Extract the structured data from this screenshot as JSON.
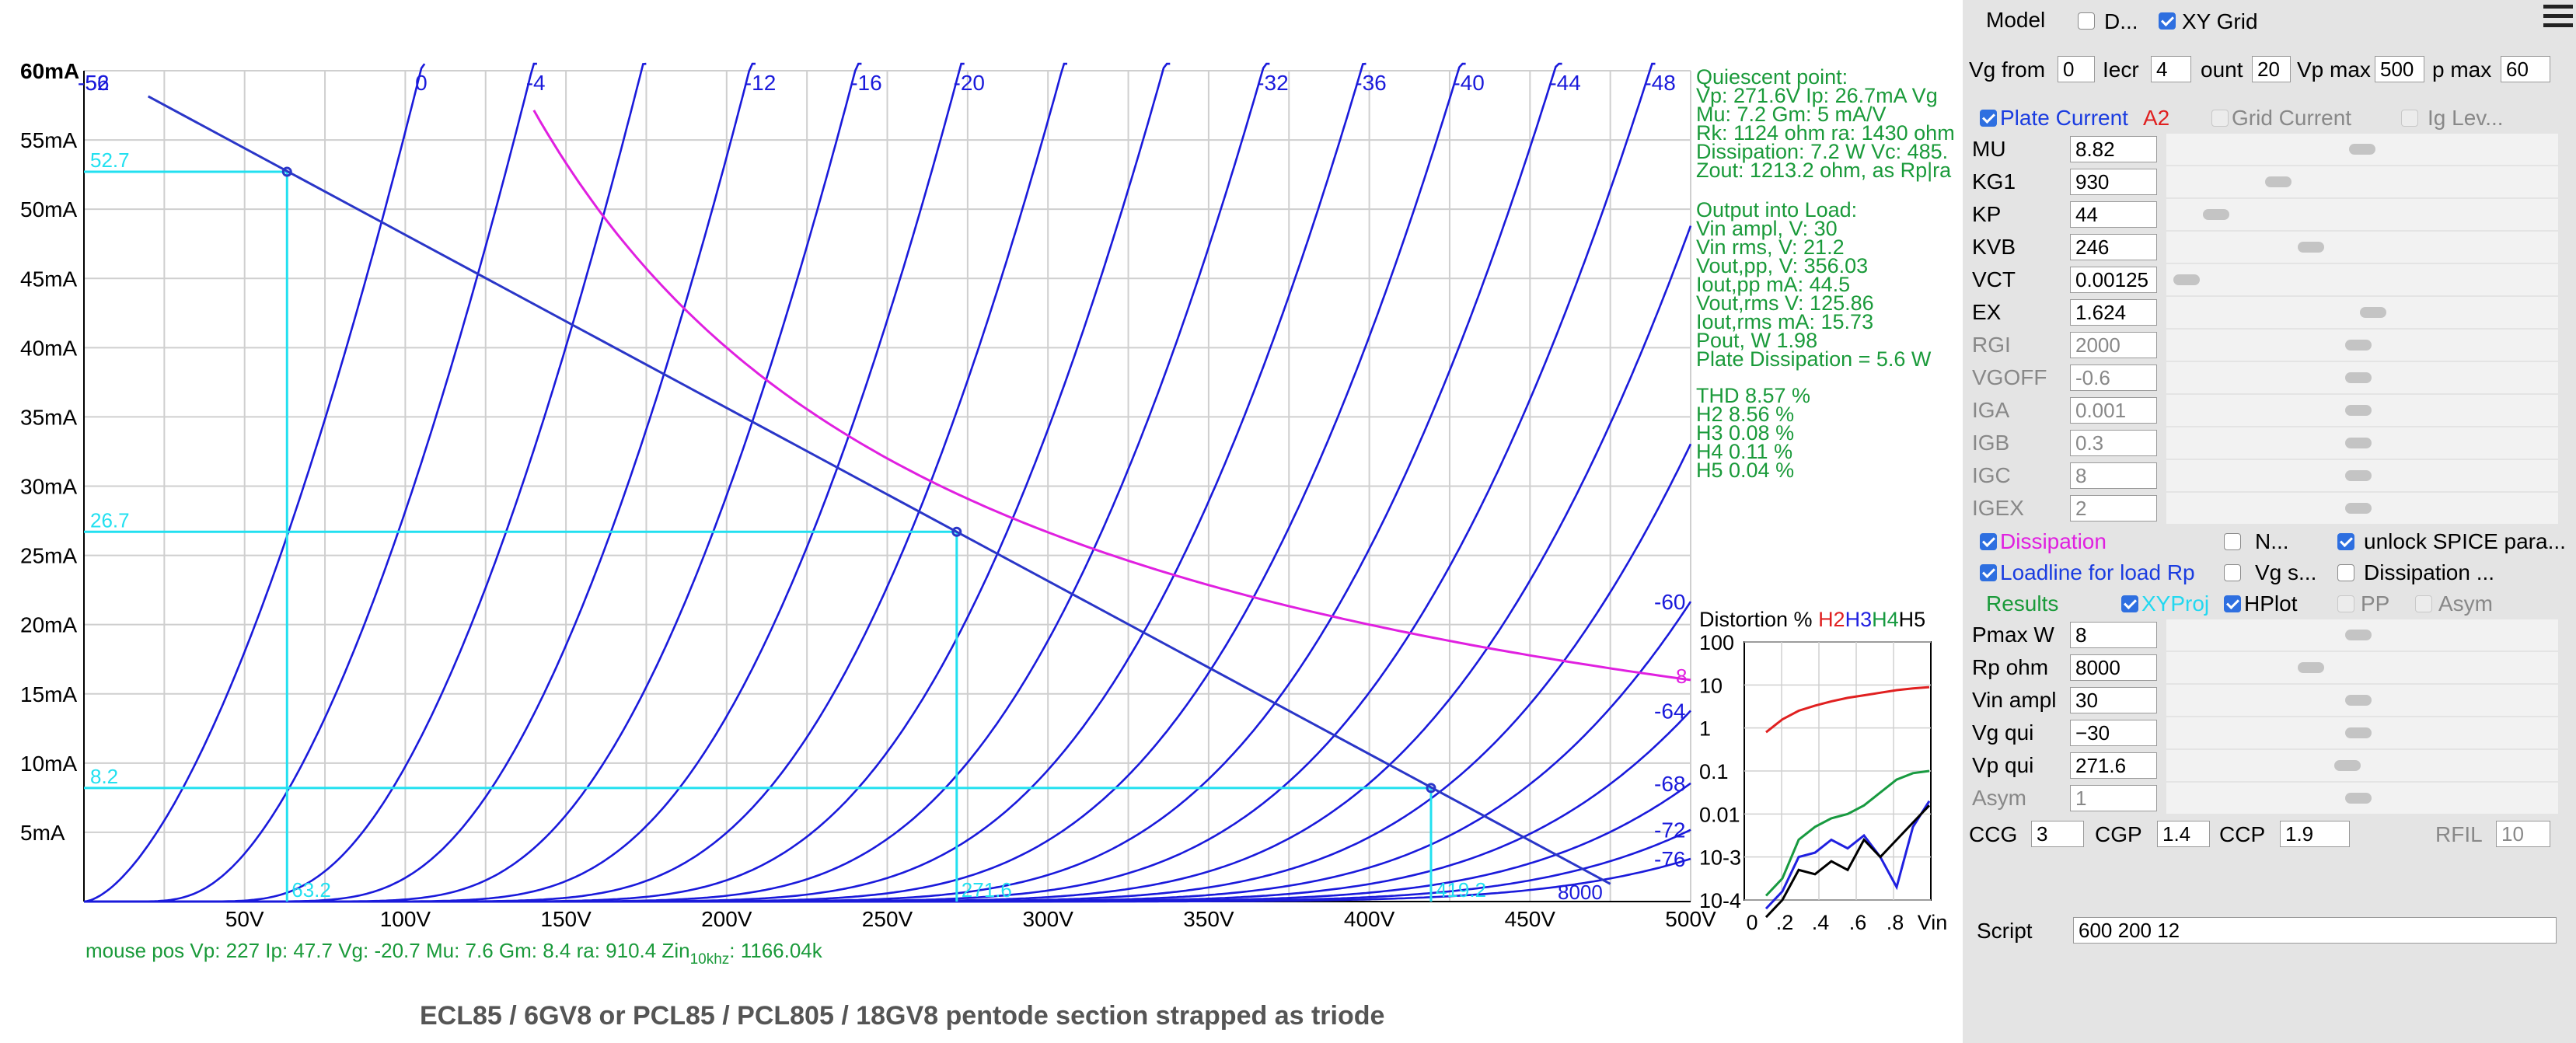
{
  "plot": {
    "ylabels": [
      "60mA",
      "55mA",
      "50mA",
      "45mA",
      "40mA",
      "35mA",
      "30mA",
      "25mA",
      "20mA",
      "15mA",
      "10mA",
      "5mA"
    ],
    "xlabels": [
      "50V",
      "100V",
      "150V",
      "200V",
      "250V",
      "300V",
      "350V",
      "400V",
      "450V",
      "500V"
    ],
    "grid_top_labels": [
      "0",
      "-4",
      "-12",
      "-16",
      "-20",
      "-32",
      "-36",
      "-40",
      "-44",
      "-48",
      "-52",
      "-56"
    ],
    "grid_right_labels": [
      "-60",
      "-64",
      "-68",
      "-72",
      "-76"
    ],
    "proj_values": {
      "ip_max": "52.7",
      "ip_q": "26.7",
      "ip_min": "8.2",
      "vp_min": "63.2",
      "vp_q": "271.6",
      "vp_max": "419.2"
    },
    "load_label": "8000",
    "diss_label": "8",
    "colors": {
      "curves": "#1a1adb",
      "loadline": "#2a36c8",
      "dissipation": "#e020e0",
      "proj": "#22e0f0",
      "info": "#1a9a3a",
      "grid": "#cfcfcf"
    }
  },
  "info": {
    "quiescent": [
      "Quiescent point:",
      "Vp: 271.6V  Ip: 26.7mA  Vg",
      "Mu: 7.2 Gm: 5 mA/V",
      "Rk: 1124 ohm ra: 1430 ohm",
      "Dissipation: 7.2 W Vc: 485.",
      "Zout: 1213.2 ohm, as Rp|ra"
    ],
    "output": [
      "Output into Load:",
      "Vin ampl, V: 30",
      "Vin rms,  V: 21.2",
      "Vout,pp,   V: 356.03",
      "Iout,pp   mA: 44.5",
      "Vout,rms   V: 125.86",
      "Iout,rms  mA: 15.73",
      "Pout, W      1.98",
      "Plate Dissipation = 5.6 W"
    ],
    "thd": [
      "THD 8.57 %",
      "  H2 8.56 %",
      "  H3 0.08 %",
      "  H4 0.11 %",
      "  H5 0.04 %"
    ]
  },
  "distortion": {
    "title_prefix": "Distortion %",
    "harmonics": [
      {
        "name": "H2",
        "color": "#e02020"
      },
      {
        "name": "H3",
        "color": "#2020e0"
      },
      {
        "name": "H4",
        "color": "#189a40"
      },
      {
        "name": "H5",
        "color": "#000000"
      }
    ],
    "ylabels": [
      "100",
      "10",
      "1",
      "0.1",
      "0.01",
      "10-3",
      "10-4"
    ],
    "xlabels": [
      "0",
      ".2",
      ".4",
      ".6",
      ".8",
      "Vin"
    ]
  },
  "status": {
    "mouse_pos": "mouse pos Vp: 227     Ip: 47.7      Vg: -20.7    Mu: 7.6      Gm: 8.4      ra: 910.4    Zin",
    "zin_sub": "10khz",
    "zin_val": ": 1166.04k"
  },
  "caption": "ECL85 / 6GV8 or PCL85 /  PCL805 / 18GV8 pentode section strapped as triode",
  "panel": {
    "model_label": "Model",
    "d_label": "D...",
    "xygrid_label": "XY Grid",
    "vg_from_label": "Vg from",
    "vg_from": "0",
    "incr_label": "Iecr",
    "incr": "4",
    "count_label": "ount",
    "count": "20",
    "vpmax_label": "Vp max",
    "vpmax": "500",
    "pmax_label": "p max",
    "pmax": "60",
    "plate_current_label": "Plate Current",
    "a2_label": "A2",
    "grid_current_label": "Grid Current",
    "ig_lev_label": "Ig Lev...",
    "params": [
      {
        "name": "MU",
        "value": "8.82",
        "thumb": 0.5
      },
      {
        "name": "KG1",
        "value": "930",
        "thumb": 0.27
      },
      {
        "name": "KP",
        "value": "44",
        "thumb": 0.1
      },
      {
        "name": "KVB",
        "value": "246",
        "thumb": 0.36
      },
      {
        "name": "VCT",
        "value": "0.00125",
        "thumb": 0.02
      },
      {
        "name": "EX",
        "value": "1.624",
        "thumb": 0.53
      },
      {
        "name": "RGI",
        "value": "2000",
        "thumb": 0.49,
        "disabled": true
      },
      {
        "name": "VGOFF",
        "value": "-0.6",
        "thumb": 0.49,
        "disabled": true
      },
      {
        "name": "IGA",
        "value": "0.001",
        "thumb": 0.49,
        "disabled": true
      },
      {
        "name": "IGB",
        "value": "0.3",
        "thumb": 0.49,
        "disabled": true
      },
      {
        "name": "IGC",
        "value": "8",
        "thumb": 0.49,
        "disabled": true
      },
      {
        "name": "IGEX",
        "value": "2",
        "thumb": 0.49,
        "disabled": true
      }
    ],
    "dissipation_label": "Dissipation",
    "n_label": "N...",
    "unlock_label": "unlock SPICE para...",
    "loadline_label": "Loadline for load Rp",
    "vgs_label": "Vg s...",
    "dissipation2_label": "Dissipation ...",
    "results_label": "Results",
    "xyproj_label": "XYProj",
    "hplot_label": "HPlot",
    "pp_label": "PP",
    "asym_label": "Asym",
    "results": [
      {
        "name": "Pmax W",
        "value": "8",
        "thumb": 0.49
      },
      {
        "name": "Rp ohm",
        "value": "8000",
        "thumb": 0.36
      },
      {
        "name": "Vin ampl",
        "value": "30",
        "thumb": 0.49
      },
      {
        "name": "Vg qui",
        "value": "−30",
        "thumb": 0.49
      },
      {
        "name": "Vp qui",
        "value": "271.6",
        "thumb": 0.46
      },
      {
        "name": "Asym",
        "value": "1",
        "thumb": 0.49,
        "disabled": true
      }
    ],
    "ccg_label": "CCG",
    "ccg": "3",
    "cgp_label": "CGP",
    "cgp": "1.4",
    "ccp_label": "CCP",
    "ccp": "1.9",
    "rfil_label": "RFIL",
    "rfil": "10",
    "script_label": "Script",
    "script": "600 200 12"
  }
}
